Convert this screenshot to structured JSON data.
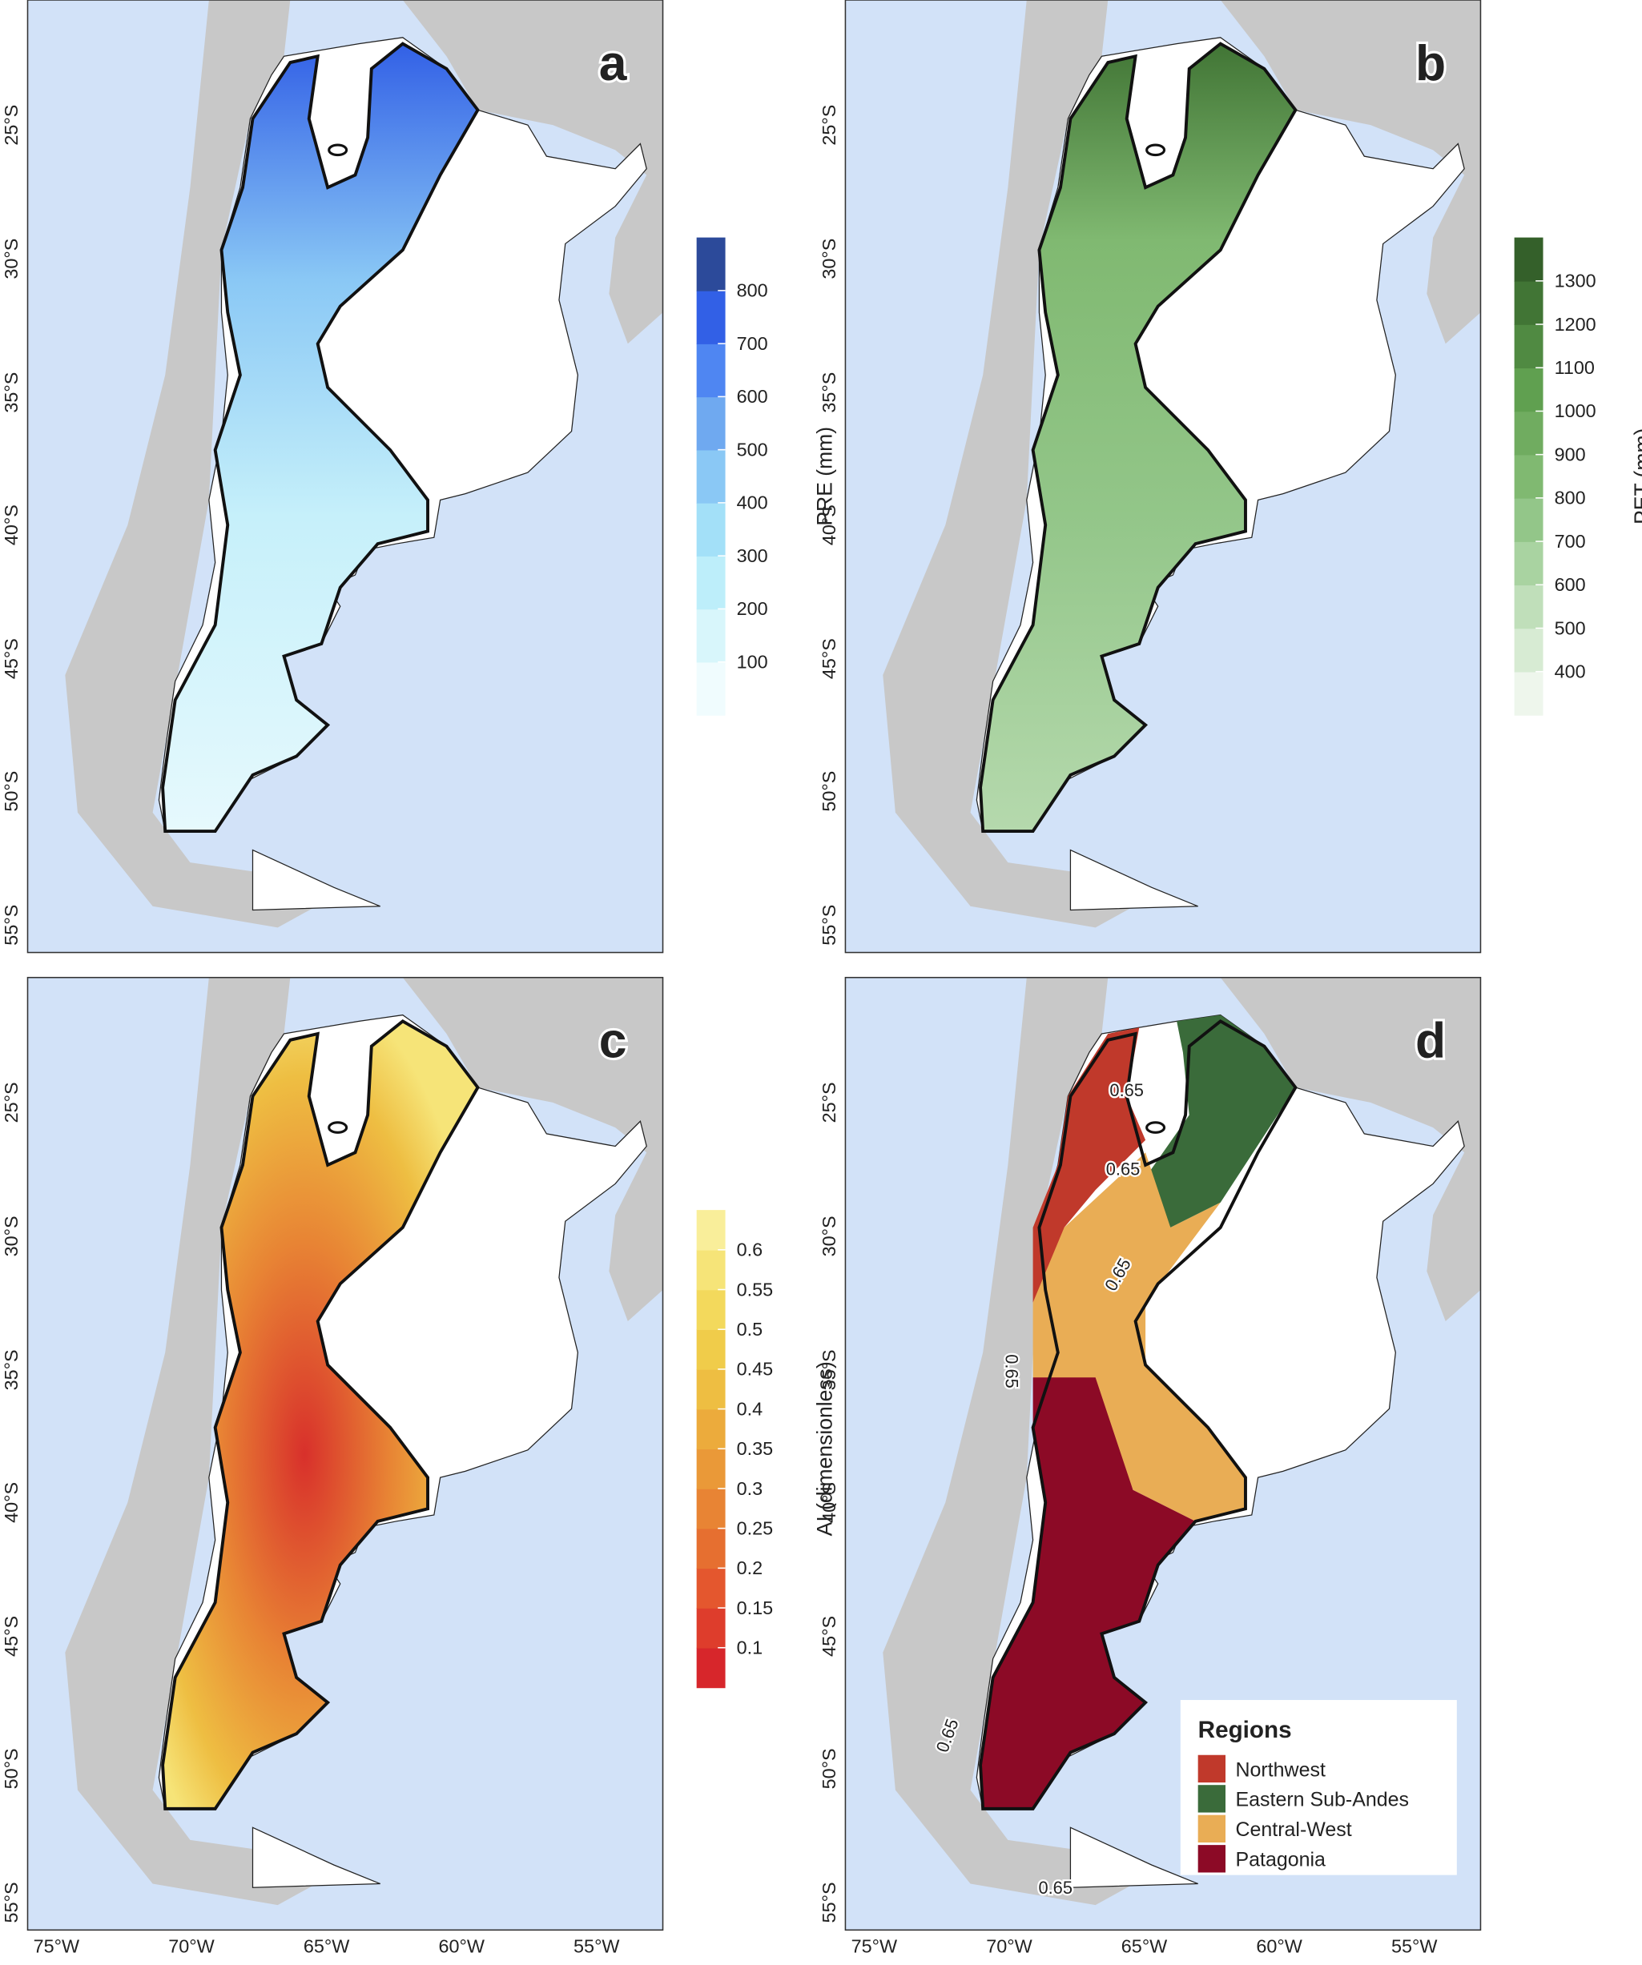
{
  "panels": [
    {
      "letter": "a",
      "colorbar": {
        "title": "PRE (mm)",
        "range": [
          0,
          900
        ],
        "ticks": [
          100,
          200,
          300,
          400,
          500,
          600,
          700,
          800
        ],
        "colors": [
          "#f0fcfe",
          "#d8f6fb",
          "#bdeefa",
          "#a3e0f8",
          "#8ac8f5",
          "#6fa9f0",
          "#4f86f2",
          "#3260e6",
          "#2c4a9a"
        ]
      }
    },
    {
      "letter": "b",
      "colorbar": {
        "title": "PET (mm)",
        "range": [
          300,
          1400
        ],
        "ticks": [
          400,
          500,
          600,
          700,
          800,
          900,
          1000,
          1100,
          1200,
          1300
        ],
        "colors": [
          "#eef6ec",
          "#d7ebd3",
          "#c0dfba",
          "#a9d3a1",
          "#93c689",
          "#80b971",
          "#70ac60",
          "#60a050",
          "#508a42",
          "#417535",
          "#34602a"
        ]
      }
    },
    {
      "letter": "c",
      "colorbar": {
        "title": "AI (dimensionless)",
        "range": [
          0.05,
          0.65
        ],
        "ticks": [
          0.1,
          0.15,
          0.2,
          0.25,
          0.3,
          0.35,
          0.4,
          0.45,
          0.5,
          0.55,
          0.6
        ],
        "colors": [
          "#d7262b",
          "#de3d2c",
          "#e4572e",
          "#e66f30",
          "#e88434",
          "#ea9938",
          "#ecab3c",
          "#eebe42",
          "#f0cc4a",
          "#f3d95c",
          "#f6e478",
          "#f9ee9a"
        ]
      }
    },
    {
      "letter": "d",
      "legend": {
        "title": "Regions",
        "entries": [
          {
            "name": "Northwest",
            "color": "#c0392b"
          },
          {
            "name": "Eastern Sub-Andes",
            "color": "#3a6b3a"
          },
          {
            "name": "Central-West",
            "color": "#e9ad55"
          },
          {
            "name": "Patagonia",
            "color": "#8c0a26"
          }
        ]
      },
      "contour_labels": [
        "0.65",
        "0.65",
        "0.65",
        "0.65",
        "0.65",
        "0.65"
      ]
    }
  ],
  "lat_labels": [
    "25°S",
    "30°S",
    "35°S",
    "40°S",
    "45°S",
    "50°S",
    "55°S"
  ],
  "lon_labels": [
    "75°W",
    "70°W",
    "65°W",
    "60°W",
    "55°W"
  ]
}
